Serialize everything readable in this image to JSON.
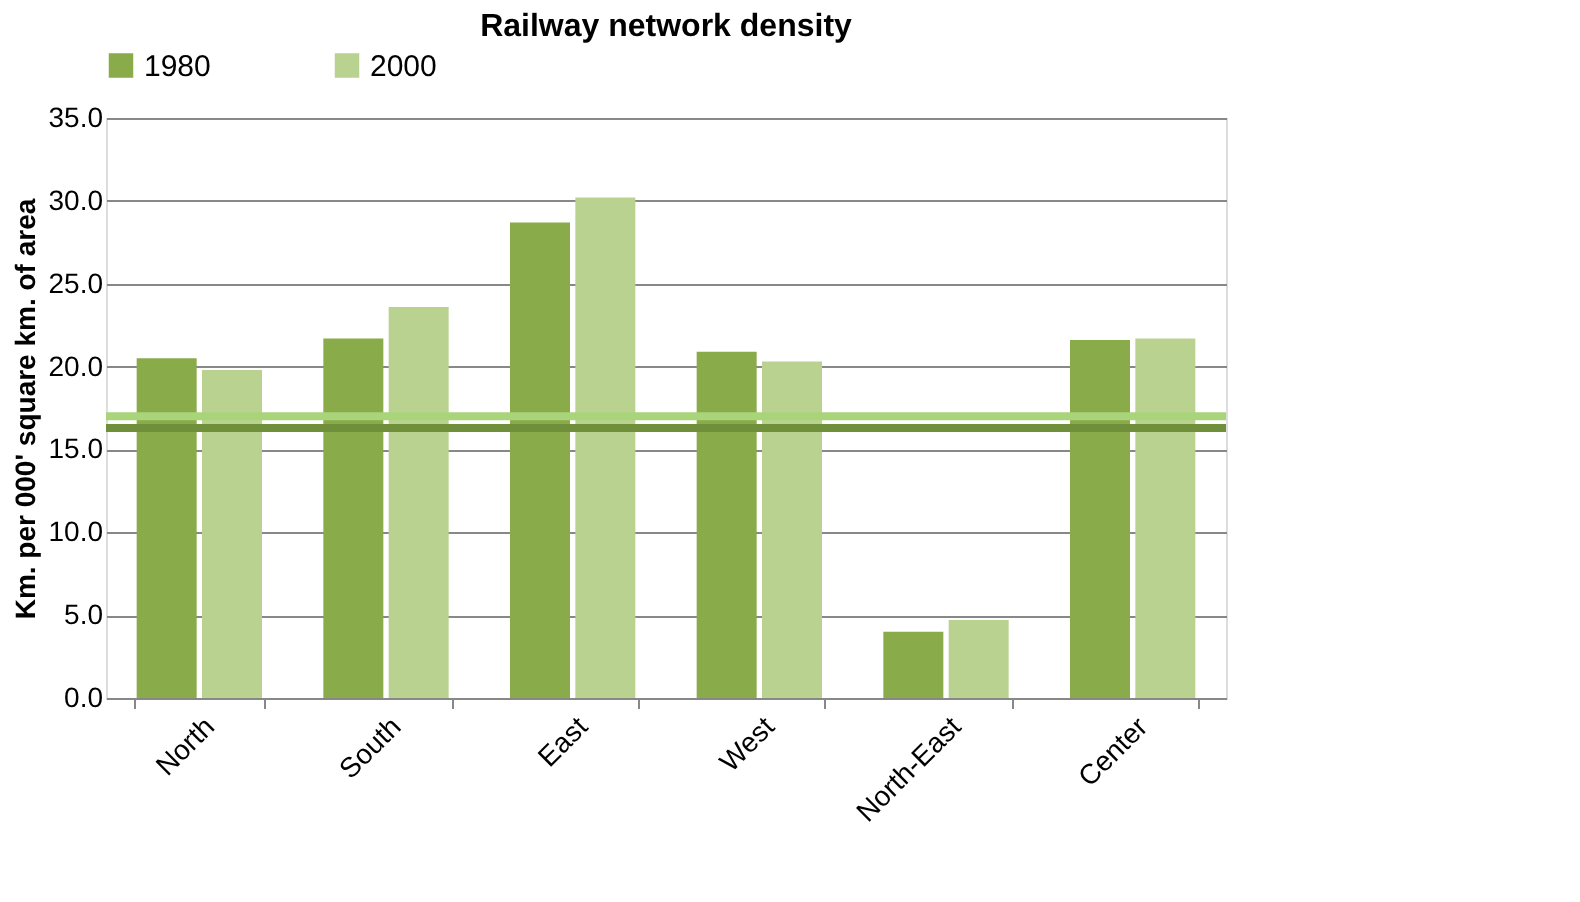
{
  "chart_data": {
    "type": "bar",
    "title": "Railway network density",
    "ylabel": "Km. per 000' square km. of area",
    "categories": [
      "North",
      "South",
      "East",
      "West",
      "North-East",
      "Center"
    ],
    "series": [
      {
        "name": "1980",
        "color": "#8aab4a",
        "values": [
          20.5,
          21.7,
          28.7,
          20.9,
          4.0,
          21.6
        ]
      },
      {
        "name": "2000",
        "color": "#bad28f",
        "values": [
          19.8,
          23.6,
          30.2,
          20.3,
          4.7,
          21.7
        ]
      }
    ],
    "ylim": [
      0,
      35
    ],
    "yticks": [
      {
        "value": 0,
        "label": "0.0"
      },
      {
        "value": 5,
        "label": "5.0"
      },
      {
        "value": 10,
        "label": "10.0"
      },
      {
        "value": 15,
        "label": "15.0"
      },
      {
        "value": 20,
        "label": "20.0"
      },
      {
        "value": 25,
        "label": "25.0"
      },
      {
        "value": 30,
        "label": "30.0"
      },
      {
        "value": 35,
        "label": "35.0"
      }
    ],
    "ref_lines": [
      {
        "axis": "y",
        "value": 17.0,
        "color": "#a9d47a"
      },
      {
        "axis": "y",
        "value": 16.3,
        "color": "#6f8f3a"
      }
    ],
    "grid": "y",
    "legend": "top"
  }
}
